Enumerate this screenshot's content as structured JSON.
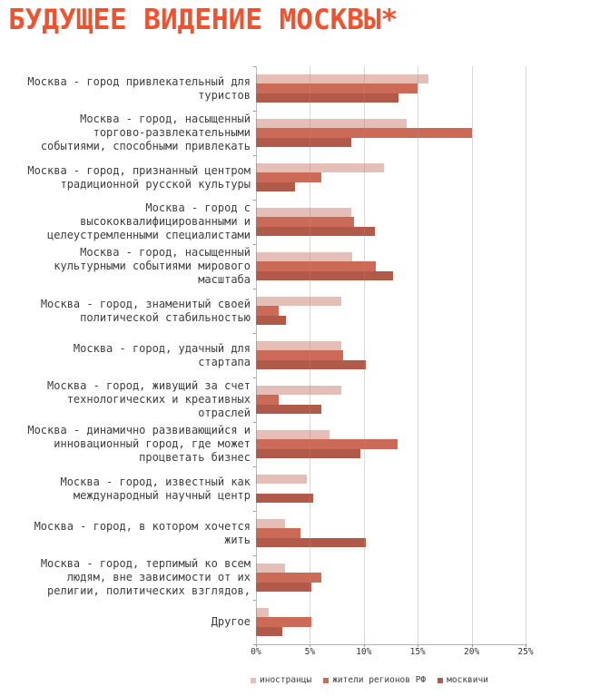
{
  "title": "БУДУЩЕЕ ВИДЕНИЕ МОСКВЫ*",
  "colors": {
    "title": "#f2512e",
    "series_foreigners": "#e4beb7",
    "series_regions": "#cc6a58",
    "series_muscovites": "#b25a4a",
    "gridline": "#c9c9c9",
    "spine": "#b3b3b3",
    "label_text": "#3d3d3d"
  },
  "chart_data": {
    "type": "bar",
    "orientation": "horizontal",
    "title": "БУДУЩЕЕ ВИДЕНИЕ МОСКВЫ*",
    "xlabel": "",
    "ylabel": "",
    "xlim": [
      0,
      25
    ],
    "x_ticks": [
      "0%",
      "5%",
      "10%",
      "15%",
      "20%",
      "25%"
    ],
    "x_tick_values": [
      0,
      5,
      10,
      15,
      20,
      25
    ],
    "grid": true,
    "legend_position": "bottom-left",
    "categories": [
      "Москва - город привлекательный для туристов",
      "Москва - город, насыщенный торгово-развлекательными событиями, способными привлекать",
      "Москва - город, признанный центром традиционной русской культуры",
      "Москва - город с высококвалифицированными и целеустремленными специалистами",
      "Москва - город, насыщенный культурными событиями мирового масштаба",
      "Москва - город, знаменитый своей политической стабильностью",
      "Москва - город, удачный для стартапа",
      "Москва - город, живущий за счет технологических и креативных отраслей",
      "Москва - динамично развивающийся и инновационный город, где может процветать бизнес",
      "Москва - город, известный как международный научный центр",
      "Москва - город, в котором хочется жить",
      "Москва - город, терпимый ко всем людям, вне зависимости от их религии, политических взглядов,",
      "Другое"
    ],
    "category_display_lines": [
      [
        "Москва - город привлекательный для",
        "туристов"
      ],
      [
        "Москва - город, насыщенный",
        "торгово-развлекательными",
        "событиями, способными привлекать"
      ],
      [
        "Москва - город, признанный центром",
        "традиционной русской культуры"
      ],
      [
        "Москва - город с",
        "высококвалифицированными и",
        "целеустремленными специалистами"
      ],
      [
        "Москва - город, насыщенный",
        "культурными событиями мирового",
        "масштаба"
      ],
      [
        "Москва - город, знаменитый своей",
        "политической стабильностью"
      ],
      [
        "Москва - город, удачный для",
        "стартапа"
      ],
      [
        "Москва - город, живущий за счет",
        "технологических и креативных",
        "отраслей"
      ],
      [
        "Москва - динамично развивающийся и",
        "инновационный город, где может",
        "процветать бизнес"
      ],
      [
        "Москва - город, известный как",
        "международный научный центр"
      ],
      [
        "Москва - город, в котором хочется",
        "жить"
      ],
      [
        "Москва - город, терпимый ко всем",
        "людям, вне зависимости от их",
        "религии, политических взглядов,"
      ],
      [
        "Другое"
      ]
    ],
    "series": [
      {
        "name": "иностранцы",
        "color": "#e4beb7",
        "values": [
          16.0,
          14.0,
          11.9,
          8.8,
          8.9,
          7.9,
          7.9,
          7.9,
          6.8,
          4.7,
          2.7,
          2.7,
          1.2
        ]
      },
      {
        "name": "жители регионов РФ",
        "color": "#cc6a58",
        "values": [
          15.0,
          20.0,
          6.1,
          9.1,
          11.1,
          2.1,
          8.1,
          2.1,
          13.1,
          0,
          4.1,
          6.1,
          5.1
        ]
      },
      {
        "name": "москвичи",
        "color": "#b25a4a",
        "values": [
          13.2,
          8.8,
          3.6,
          11.0,
          12.7,
          2.8,
          10.2,
          6.1,
          9.7,
          5.3,
          10.2,
          5.1,
          2.4
        ]
      }
    ]
  }
}
